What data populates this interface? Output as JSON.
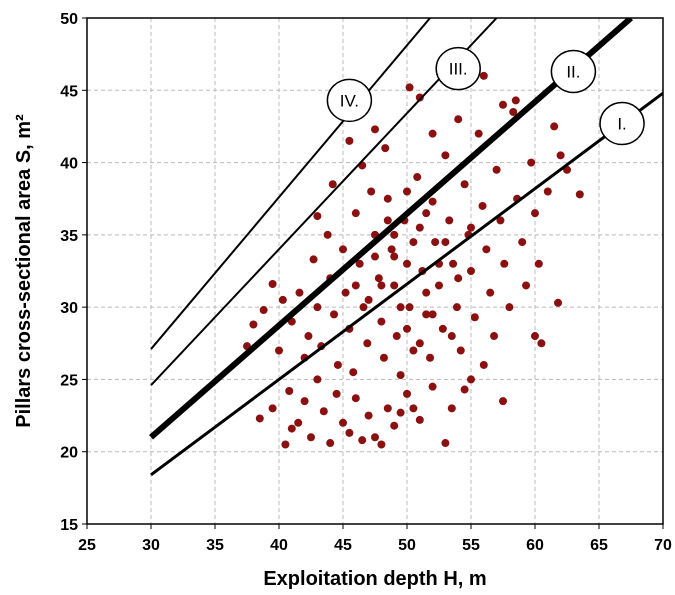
{
  "chart_data": {
    "type": "scatter",
    "x_label": "Exploitation depth H, m",
    "y_label": "Pillars cross-sectional area S, m²",
    "xlim": [
      25,
      70
    ],
    "xticks": [
      25,
      30,
      35,
      40,
      45,
      50,
      55,
      60,
      65,
      70
    ],
    "ylim": [
      15,
      50
    ],
    "yticks": [
      15,
      20,
      25,
      30,
      35,
      40,
      45,
      50
    ],
    "grid": true,
    "series": [
      {
        "color": "#8b1010",
        "x": [
          38.5,
          39.5,
          40.5,
          41,
          40.8,
          41.5,
          42,
          42.5,
          43,
          43.5,
          44,
          44.5,
          45,
          45.5,
          46,
          46.5,
          47,
          47.5,
          48,
          48.5,
          49,
          49.5,
          50,
          50.5,
          51,
          52,
          53,
          53.5,
          54.5,
          55,
          56,
          57.5,
          37.5,
          38,
          38.8,
          39.5,
          40,
          40.3,
          41,
          41.6,
          42,
          42.3,
          42.7,
          43,
          43.3,
          43.8,
          44,
          44.3,
          44.6,
          45,
          45.2,
          45.5,
          45.8,
          46,
          46.3,
          46.6,
          46.9,
          47.2,
          47.5,
          47.8,
          48,
          48.2,
          48.5,
          48.8,
          49,
          49.2,
          49.5,
          49.8,
          50,
          50.2,
          50.5,
          50.8,
          51,
          51.2,
          51.5,
          51.8,
          52,
          52.2,
          52.5,
          52.8,
          53,
          53.3,
          53.6,
          53.9,
          54.2,
          54.5,
          54.8,
          55,
          55.3,
          55.6,
          55.9,
          56.2,
          56.5,
          56.8,
          57,
          57.3,
          57.6,
          58,
          58.3,
          58.6,
          59,
          59.3,
          59.7,
          60,
          60,
          60.3,
          61,
          61.5,
          61.8,
          62.5,
          63.5,
          62,
          60.5,
          50.2,
          51,
          53.5,
          56,
          44.2,
          45.5,
          47.5,
          48.3,
          46.5,
          43,
          52,
          54,
          57.5,
          58.5,
          49,
          50.5,
          51.5,
          52.5,
          49.5,
          48,
          47,
          50,
          51,
          53,
          54,
          55,
          49,
          47.5,
          46,
          52,
          53.5,
          51.5,
          50,
          48.5
        ],
        "y": [
          22.3,
          23,
          20.5,
          21.6,
          24.2,
          22,
          23.5,
          21,
          25,
          22.8,
          20.6,
          24,
          22,
          21.3,
          23.7,
          20.8,
          22.5,
          21,
          20.5,
          23,
          21.8,
          22.7,
          24,
          23,
          22.2,
          24.5,
          20.6,
          23,
          24.3,
          25,
          26,
          23.5,
          27.3,
          28.8,
          29.8,
          31.6,
          27,
          30.5,
          29,
          31,
          26.5,
          28,
          33.3,
          30,
          27.3,
          35,
          32,
          29.5,
          26,
          34,
          31,
          28.5,
          25.5,
          36.5,
          33,
          30,
          27.5,
          38,
          35,
          32,
          29,
          26.5,
          37.5,
          34,
          31.5,
          28,
          25.3,
          36,
          33,
          30,
          27,
          39,
          35.5,
          32.5,
          29.5,
          26.5,
          37.3,
          34.5,
          31.5,
          28.5,
          40.5,
          36,
          33,
          30,
          27,
          38.5,
          35,
          32.5,
          29.3,
          42,
          37,
          34,
          31,
          28,
          39.5,
          36,
          33,
          30,
          43.5,
          37.5,
          34.5,
          31.5,
          40,
          36.5,
          28,
          33,
          38,
          42.5,
          30.3,
          39.5,
          37.8,
          40.5,
          27.5,
          45.2,
          44.5,
          45.5,
          46,
          38.5,
          41.5,
          42.3,
          41,
          39.8,
          36.3,
          42,
          43,
          44,
          44.3,
          33.5,
          34.5,
          31,
          33,
          30,
          31.5,
          30.5,
          28.5,
          27.5,
          34.5,
          32,
          35.5,
          35,
          33.5,
          31.5,
          29.5,
          28,
          36.5,
          38,
          36
        ]
      }
    ],
    "lines": [
      {
        "label": "I.",
        "x": [
          30,
          70
        ],
        "y": [
          18.4,
          44.8
        ]
      },
      {
        "label": "II.",
        "x": [
          30,
          67.5
        ],
        "y": [
          21,
          50
        ]
      },
      {
        "label": "III.",
        "x": [
          30,
          57
        ],
        "y": [
          24.6,
          50
        ]
      },
      {
        "label": "IV.",
        "x": [
          30,
          51.8
        ],
        "y": [
          27.1,
          50
        ]
      }
    ]
  }
}
